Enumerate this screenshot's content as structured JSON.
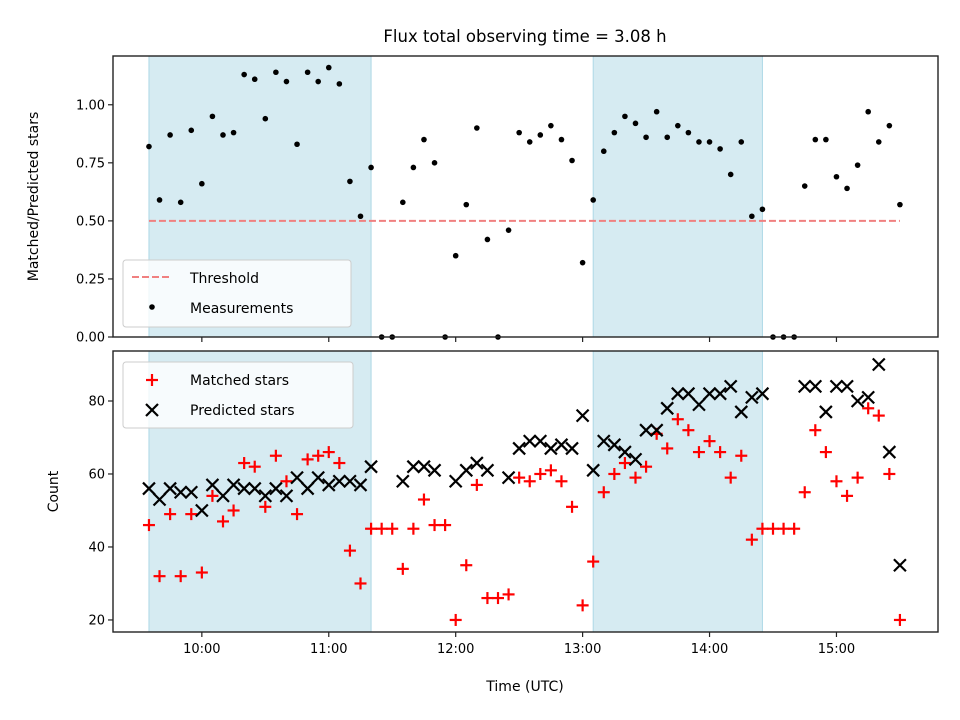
{
  "chart_data": [
    {
      "type": "scatter",
      "panel": "top",
      "title": "Flux total observing time = 3.08 h",
      "xlabel": "",
      "ylabel": "Matched/Predicted stars",
      "ylim": [
        0,
        1.21
      ],
      "xlim": [
        "09:18",
        "15:48"
      ],
      "yticks": [
        "0.00",
        "0.25",
        "0.50",
        "0.75",
        "1.00"
      ],
      "ytick_values": [
        0,
        0.25,
        0.5,
        0.75,
        1.0
      ],
      "xticks": [
        "10:00",
        "11:00",
        "12:00",
        "13:00",
        "14:00",
        "15:00"
      ],
      "xtick_labels_visible": false,
      "grid": false,
      "legend": {
        "placement": "lower-left",
        "entries": [
          "Threshold",
          "Measurements"
        ]
      },
      "threshold": {
        "name": "Threshold",
        "value": 0.5,
        "x_start": "09:35",
        "x_end": "15:30",
        "color": "#f08080",
        "style": "dashed"
      },
      "shaded_intervals": [
        {
          "start": "09:35",
          "end": "11:20",
          "color": "#add8e6"
        },
        {
          "start": "13:05",
          "end": "14:25",
          "color": "#add8e6"
        }
      ],
      "series": [
        {
          "name": "Measurements",
          "color": "#000000",
          "marker": "dot",
          "x_start": "09:35",
          "x_step_minutes": 5,
          "values": [
            0.82,
            0.59,
            0.87,
            0.58,
            0.89,
            0.66,
            0.95,
            0.87,
            0.88,
            1.13,
            1.11,
            0.94,
            1.14,
            1.1,
            0.83,
            1.14,
            1.1,
            1.16,
            1.09,
            0.67,
            0.52,
            0.73,
            0,
            0,
            0.58,
            0.73,
            0.85,
            0.75,
            0,
            0.35,
            0.57,
            0.9,
            0.42,
            0,
            0.46,
            0.88,
            0.84,
            0.87,
            0.91,
            0.85,
            0.76,
            0.32,
            0.59,
            0.8,
            0.88,
            0.95,
            0.92,
            0.86,
            0.97,
            0.86,
            0.91,
            0.88,
            0.84,
            0.84,
            0.81,
            0.7,
            0.84,
            0.52,
            0.55,
            0,
            0,
            0,
            0.65,
            0.85,
            0.85,
            0.69,
            0.64,
            0.74,
            0.97,
            0.84,
            0.91,
            0.57
          ]
        }
      ]
    },
    {
      "type": "scatter",
      "panel": "bottom",
      "title": "",
      "xlabel": "Time (UTC)",
      "ylabel": "Count",
      "ylim": [
        16.7,
        93.7
      ],
      "xlim": [
        "09:18",
        "15:48"
      ],
      "yticks": [
        "20",
        "40",
        "60",
        "80"
      ],
      "ytick_values": [
        20,
        40,
        60,
        80
      ],
      "xticks": [
        "10:00",
        "11:00",
        "12:00",
        "13:00",
        "14:00",
        "15:00"
      ],
      "grid": false,
      "legend": {
        "placement": "top-left",
        "entries": [
          "Matched stars",
          "Predicted stars"
        ]
      },
      "shaded_intervals": [
        {
          "start": "09:35",
          "end": "11:20",
          "color": "#add8e6"
        },
        {
          "start": "13:05",
          "end": "14:25",
          "color": "#add8e6"
        }
      ],
      "series": [
        {
          "name": "Matched stars",
          "color": "#ff0000",
          "marker": "plus",
          "x_start": "09:35",
          "x_step_minutes": 5,
          "values": [
            46,
            32,
            49,
            32,
            49,
            33,
            54,
            47,
            50,
            63,
            62,
            51,
            65,
            58,
            49,
            64,
            65,
            66,
            63,
            39,
            30,
            45,
            45,
            45,
            34,
            45,
            53,
            46,
            46,
            20,
            35,
            57,
            26,
            26,
            27,
            59,
            58,
            60,
            61,
            58,
            51,
            24,
            36,
            55,
            60,
            63,
            59,
            62,
            71,
            67,
            75,
            72,
            66,
            69,
            66,
            59,
            65,
            42,
            45,
            45,
            45,
            45,
            55,
            72,
            66,
            58,
            54,
            59,
            78,
            76,
            60,
            20
          ]
        },
        {
          "name": "Predicted stars",
          "color": "#000000",
          "marker": "x",
          "x_start": "09:35",
          "x_step_minutes": 5,
          "values": [
            56,
            53,
            56,
            55,
            55,
            50,
            57,
            54,
            57,
            56,
            56,
            54,
            56,
            54,
            59,
            56,
            59,
            57,
            58,
            58,
            57,
            62,
            null,
            null,
            58,
            62,
            62,
            61,
            null,
            58,
            61,
            63,
            61,
            null,
            59,
            67,
            69,
            69,
            67,
            68,
            67,
            76,
            61,
            69,
            68,
            66,
            64,
            72,
            72,
            78,
            82,
            82,
            79,
            82,
            82,
            84,
            77,
            81,
            82,
            null,
            null,
            null,
            84,
            84,
            77,
            84,
            84,
            80,
            81,
            90,
            66,
            35
          ]
        }
      ]
    }
  ]
}
